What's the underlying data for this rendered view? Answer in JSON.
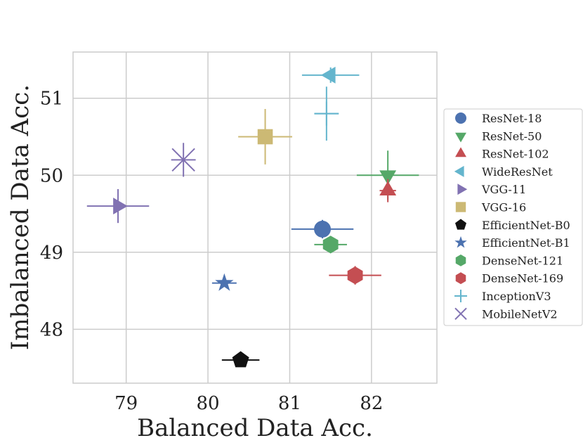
{
  "chart_data": {
    "type": "scatter",
    "title": "",
    "xlabel": "Balanced Data Acc.",
    "ylabel": "Imbalanced Data Acc.",
    "xlim": [
      78.35,
      82.8
    ],
    "ylim": [
      47.3,
      51.6
    ],
    "xticks": [
      "79",
      "80",
      "81",
      "82"
    ],
    "yticks": [
      "48",
      "49",
      "50",
      "51"
    ],
    "grid": true,
    "legend_position": "right",
    "series": [
      {
        "name": "ResNet-18",
        "marker": "circle",
        "color": "#4c72b0",
        "x": 81.4,
        "y": 49.3,
        "xerr": 0.38,
        "yerr": 0.12
      },
      {
        "name": "ResNet-50",
        "marker": "triangle-down",
        "color": "#55a868",
        "x": 82.2,
        "y": 50.0,
        "xerr": 0.38,
        "yerr": 0.32
      },
      {
        "name": "ResNet-102",
        "marker": "triangle-up",
        "color": "#c44e52",
        "x": 82.2,
        "y": 49.8,
        "xerr": 0.1,
        "yerr": 0.15
      },
      {
        "name": "WideResNet",
        "marker": "triangle-left",
        "color": "#64b5cd",
        "x": 81.5,
        "y": 51.3,
        "xerr": 0.35,
        "yerr": 0.1
      },
      {
        "name": "VGG-11",
        "marker": "triangle-right",
        "color": "#8172b2",
        "x": 78.9,
        "y": 49.6,
        "xerr": 0.38,
        "yerr": 0.22
      },
      {
        "name": "VGG-16",
        "marker": "square",
        "color": "#ccb974",
        "x": 80.7,
        "y": 50.5,
        "xerr": 0.33,
        "yerr": 0.36
      },
      {
        "name": "EfficientNet-B0",
        "marker": "pentagon",
        "color": "#111111",
        "x": 80.4,
        "y": 47.6,
        "xerr": 0.23,
        "yerr": 0.05
      },
      {
        "name": "EfficientNet-B1",
        "marker": "star",
        "color": "#4c72b0",
        "x": 80.2,
        "y": 48.6,
        "xerr": 0.15,
        "yerr": 0.05
      },
      {
        "name": "DenseNet-121",
        "marker": "hexagon",
        "color": "#55a868",
        "x": 81.5,
        "y": 49.1,
        "xerr": 0.2,
        "yerr": 0.1
      },
      {
        "name": "DenseNet-169",
        "marker": "hexagon",
        "color": "#c44e52",
        "x": 81.8,
        "y": 48.7,
        "xerr": 0.32,
        "yerr": 0.12
      },
      {
        "name": "InceptionV3",
        "marker": "plus",
        "color": "#64b5cd",
        "x": 81.45,
        "y": 50.8,
        "xerr": 0.15,
        "yerr": 0.35
      },
      {
        "name": "MobileNetV2",
        "marker": "x",
        "color": "#8172b2",
        "x": 79.7,
        "y": 50.2,
        "xerr": 0.15,
        "yerr": 0.22
      }
    ]
  }
}
